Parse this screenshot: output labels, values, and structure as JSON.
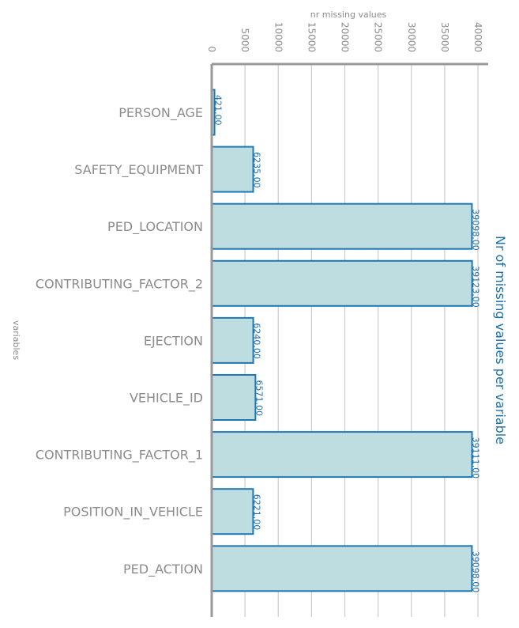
{
  "chart_data": {
    "type": "bar",
    "orientation": "horizontal",
    "title": "Nr of missing values per variable",
    "xlabel": "nr missing values",
    "ylabel": "variables",
    "xlim": [
      0,
      40000
    ],
    "xticks": [
      "0",
      "5000",
      "10000",
      "15000",
      "20000",
      "25000",
      "30000",
      "35000",
      "40000"
    ],
    "grid": true,
    "categories": [
      "PERSON_AGE",
      "SAFETY_EQUIPMENT",
      "PED_LOCATION",
      "CONTRIBUTING_FACTOR_2",
      "EJECTION",
      "VEHICLE_ID",
      "CONTRIBUTING_FACTOR_1",
      "POSITION_IN_VEHICLE",
      "PED_ACTION"
    ],
    "values": [
      421,
      6235,
      39098,
      39123,
      6240,
      6571,
      39111,
      6221,
      39098
    ],
    "value_labels": [
      "421.00",
      "6235.00",
      "39098.00",
      "39123.00",
      "6240.00",
      "6571.00",
      "39111.00",
      "6221.00",
      "39098.00"
    ],
    "colors": {
      "bar_fill": "#bedde1",
      "bar_edge": "#1f77b4",
      "label": "#1f6fa8",
      "text": "#8c8c8c",
      "axis": "#999999",
      "grid": "#cccccc"
    }
  }
}
